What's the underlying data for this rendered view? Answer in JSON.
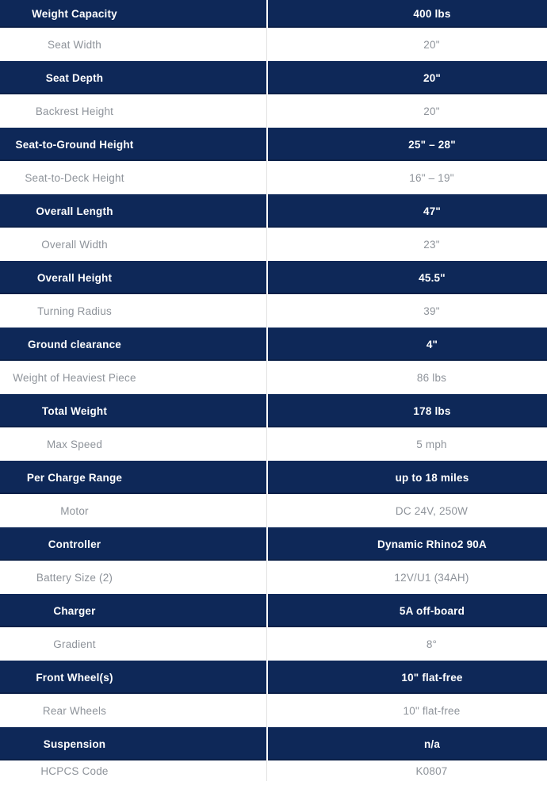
{
  "colors": {
    "navy": "#0e2858",
    "muted_text": "#8e939a",
    "divider_light": "#e2e2e2",
    "white": "#ffffff"
  },
  "table": {
    "rows": [
      {
        "label": "Weight Capacity",
        "value": "400 lbs",
        "emphasis": true
      },
      {
        "label": "Seat Width",
        "value": "20\"",
        "emphasis": false
      },
      {
        "label": "Seat Depth",
        "value": "20\"",
        "emphasis": true
      },
      {
        "label": "Backrest Height",
        "value": "20\"",
        "emphasis": false
      },
      {
        "label": "Seat-to-Ground Height",
        "value": "25\" – 28\"",
        "emphasis": true
      },
      {
        "label": "Seat-to-Deck Height",
        "value": "16\" – 19\"",
        "emphasis": false
      },
      {
        "label": "Overall Length",
        "value": "47\"",
        "emphasis": true
      },
      {
        "label": "Overall Width",
        "value": "23\"",
        "emphasis": false
      },
      {
        "label": "Overall Height",
        "value": "45.5\"",
        "emphasis": true
      },
      {
        "label": "Turning Radius",
        "value": "39\"",
        "emphasis": false
      },
      {
        "label": "Ground clearance",
        "value": "4\"",
        "emphasis": true
      },
      {
        "label": "Weight of Heaviest Piece",
        "value": "86 lbs",
        "emphasis": false
      },
      {
        "label": "Total Weight",
        "value": "178 lbs",
        "emphasis": true
      },
      {
        "label": "Max Speed",
        "value": "5 mph",
        "emphasis": false
      },
      {
        "label": "Per Charge Range",
        "value": "up to 18 miles",
        "emphasis": true
      },
      {
        "label": "Motor",
        "value": "DC 24V, 250W",
        "emphasis": false
      },
      {
        "label": "Controller",
        "value": "Dynamic Rhino2 90A",
        "emphasis": true
      },
      {
        "label": "Battery Size (2)",
        "value": "12V/U1 (34AH)",
        "emphasis": false
      },
      {
        "label": "Charger",
        "value": "5A off-board",
        "emphasis": true
      },
      {
        "label": "Gradient",
        "value": "8°",
        "emphasis": false
      },
      {
        "label": "Front Wheel(s)",
        "value": "10\" flat-free",
        "emphasis": true
      },
      {
        "label": "Rear Wheels",
        "value": "10\" flat-free",
        "emphasis": false
      },
      {
        "label": "Suspension",
        "value": "n/a",
        "emphasis": true
      },
      {
        "label": "HCPCS Code",
        "value": "K0807",
        "emphasis": false
      }
    ]
  }
}
